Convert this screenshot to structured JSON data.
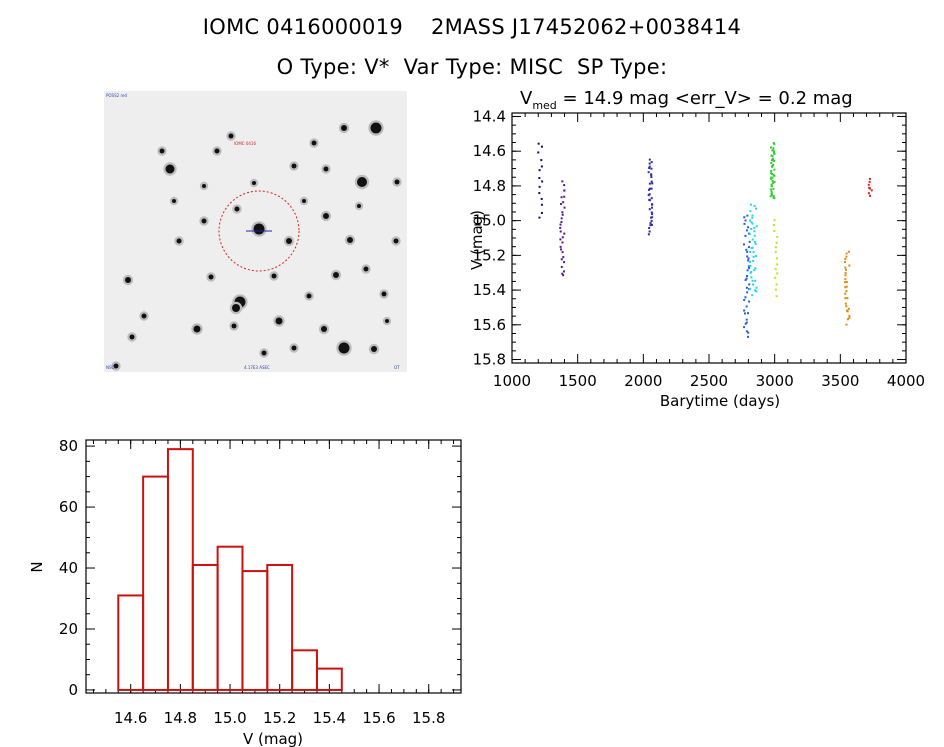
{
  "header": {
    "line1_ids": "IOMC 0416000019    2MASS J17452062+0038414",
    "line2_types": "O Type: V*  Var Type: MISC  SP Type:"
  },
  "finder": {
    "corner_top_left": "POSS2 red",
    "target_label": "IOMC 0416",
    "corner_bottom_left": "NSO",
    "corner_bottom_center": "4.17E3 ASEC",
    "corner_bottom_right": "OT"
  },
  "colors": {
    "histogram": "#cc1111",
    "circle": "#dd2222",
    "seasons": [
      "#1a0a6e",
      "#5a1a8a",
      "#2a2aaa",
      "#2060d8",
      "#20d8ee",
      "#30d030",
      "#c8dc1a",
      "#e08a10",
      "#dd2020"
    ]
  },
  "chart_data": [
    {
      "type": "scatter",
      "title_parts": {
        "V": "V",
        "sub": "med",
        "rest": " = 14.9 mag <err_V> = 0.2 mag"
      },
      "xlabel": "Barytime (days)",
      "ylabel": "V (mag)",
      "xlim": [
        1000,
        4000
      ],
      "ylim": [
        15.82,
        14.38
      ],
      "y_inverted": true,
      "xticks": [
        1000,
        1500,
        2000,
        2500,
        3000,
        3500,
        4000
      ],
      "yticks": [
        14.4,
        14.6,
        14.8,
        15.0,
        15.2,
        15.4,
        15.6,
        15.8
      ],
      "grid": false,
      "clusters": [
        {
          "x_from": 1200,
          "x_to": 1230,
          "y_from": 14.55,
          "y_to": 14.98,
          "n": 14,
          "color_index": 0
        },
        {
          "x_from": 1365,
          "x_to": 1400,
          "y_from": 14.78,
          "y_to": 15.32,
          "n": 30,
          "color_index": 1
        },
        {
          "x_from": 2040,
          "x_to": 2070,
          "y_from": 14.65,
          "y_to": 15.07,
          "n": 36,
          "color_index": 2
        },
        {
          "x_from": 2765,
          "x_to": 2810,
          "y_from": 14.97,
          "y_to": 15.67,
          "n": 40,
          "color_index": 3
        },
        {
          "x_from": 2810,
          "x_to": 2865,
          "y_from": 14.91,
          "y_to": 15.43,
          "n": 40,
          "color_index": 4
        },
        {
          "x_from": 2970,
          "x_to": 3000,
          "y_from": 14.56,
          "y_to": 14.88,
          "n": 45,
          "color_index": 5
        },
        {
          "x_from": 2985,
          "x_to": 3020,
          "y_from": 15.0,
          "y_to": 15.43,
          "n": 15,
          "color_index": 6
        },
        {
          "x_from": 3535,
          "x_to": 3570,
          "y_from": 15.18,
          "y_to": 15.59,
          "n": 28,
          "color_index": 7
        },
        {
          "x_from": 3715,
          "x_to": 3740,
          "y_from": 14.76,
          "y_to": 14.86,
          "n": 8,
          "color_index": 8
        }
      ]
    },
    {
      "type": "bar",
      "title": "",
      "xlabel": "V (mag)",
      "ylabel": "N",
      "xlim": [
        14.42,
        15.93
      ],
      "ylim": [
        -1,
        82
      ],
      "xticks": [
        14.6,
        14.8,
        15.0,
        15.2,
        15.4,
        15.6,
        15.8
      ],
      "yticks": [
        0,
        20,
        40,
        60,
        80
      ],
      "bin_width": 0.1,
      "bin_starts": [
        14.55,
        14.65,
        14.75,
        14.85,
        14.95,
        15.05,
        15.15,
        15.25,
        15.35,
        15.45,
        15.55,
        15.65
      ],
      "values": [
        31,
        70,
        79,
        41,
        47,
        39,
        41,
        13,
        7,
        0,
        0,
        0
      ]
    }
  ]
}
